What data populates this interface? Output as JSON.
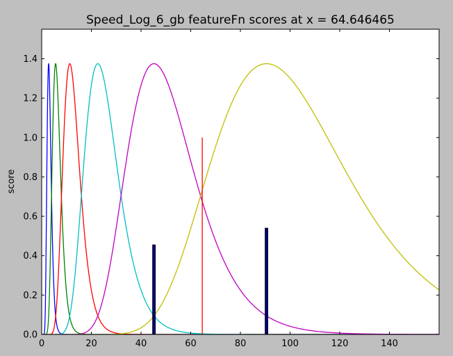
{
  "chart_data": {
    "type": "line",
    "title": "Speed_Log_6_gb featureFn scores at x = 64.646465",
    "xlabel": "",
    "ylabel": "score",
    "xlim": [
      0,
      160
    ],
    "ylim": [
      0,
      1.55
    ],
    "x_ticks": [
      "0",
      "20",
      "40",
      "60",
      "80",
      "100",
      "120",
      "140"
    ],
    "y_ticks": [
      "0.0",
      "0.2",
      "0.4",
      "0.6",
      "0.8",
      "1.0",
      "1.2",
      "1.4"
    ],
    "grid": false,
    "series": [
      {
        "color": "#0000ff",
        "peak_x": 2.8,
        "peak_y": 1.375
      },
      {
        "color": "#008000",
        "peak_x": 5.6,
        "peak_y": 1.375
      },
      {
        "color": "#ff0000",
        "peak_x": 11.3,
        "peak_y": 1.375
      },
      {
        "color": "#00bfbf",
        "peak_x": 22.6,
        "peak_y": 1.375
      },
      {
        "color": "#bf00bf",
        "peak_x": 45.2,
        "peak_y": 1.375
      },
      {
        "color": "#bfbf00",
        "peak_x": 90.5,
        "peak_y": 1.375
      }
    ],
    "vertical_line": {
      "x": 64.646465,
      "y": 1.0,
      "color": "#ff0000"
    },
    "bars": [
      {
        "x": 45.2,
        "value": 0.455,
        "color": "#00007f"
      },
      {
        "x": 90.5,
        "value": 0.54,
        "color": "#00007f"
      }
    ]
  }
}
